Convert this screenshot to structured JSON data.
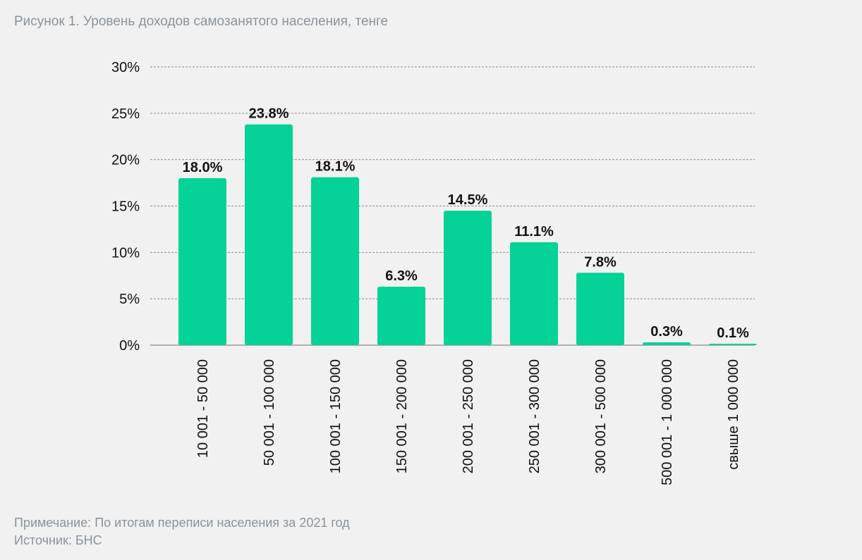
{
  "title": "Рисунок 1. Уровень доходов самозанятого населения, тенге",
  "note": "Примечание: По итогам переписи населения за 2021 год",
  "source": "Источник: БНС",
  "colors": {
    "bar": "#05d296",
    "grid": "#8c8c8c",
    "axis_text": "#111111",
    "label_text": "#111111"
  },
  "chart_data": {
    "type": "bar",
    "title": "Рисунок 1. Уровень доходов самозанятого населения, тенге",
    "xlabel": "",
    "ylabel": "",
    "ylim": [
      0,
      30
    ],
    "yticks": [
      0,
      5,
      10,
      15,
      20,
      25,
      30
    ],
    "ytick_labels": [
      "0%",
      "5%",
      "10%",
      "15%",
      "20%",
      "25%",
      "30%"
    ],
    "grid": true,
    "legend": false,
    "categories": [
      "10 001 - 50 000",
      "50 001 - 100 000",
      "100 001 - 150 000",
      "150 001 - 200 000",
      "200 001 - 250 000",
      "250 001 - 300 000",
      "300 001 - 500 000",
      "500 001 - 1 000 000",
      "свыше 1 000 000"
    ],
    "values": [
      18.0,
      23.8,
      18.1,
      6.3,
      14.5,
      11.1,
      7.8,
      0.3,
      0.1
    ],
    "data_labels": [
      "18.0%",
      "23.8%",
      "18.1%",
      "6.3%",
      "14.5%",
      "11.1%",
      "7.8%",
      "0.3%",
      "0.1%"
    ]
  }
}
